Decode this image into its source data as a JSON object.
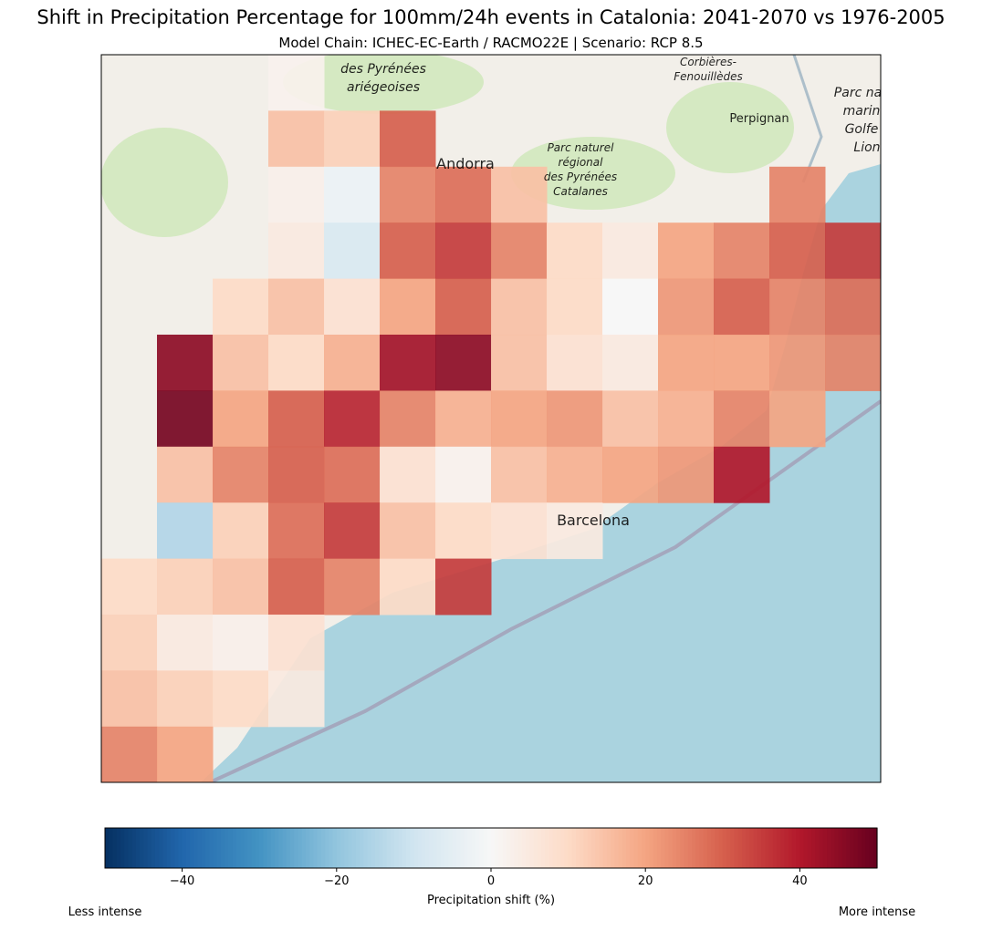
{
  "title": "Shift in Precipitation Percentage for 100mm/24h events in Catalonia: 2041-2070 vs 1976-2005",
  "subtitle": "Model Chain: ICHEC-EC-Earth / RACMO22E  | Scenario: RCP 8.5",
  "map": {
    "labels": [
      "des Pyrénées",
      "ariégeoises",
      "Corbières-",
      "Fenouillèdes",
      "Perpignan",
      "Andorra",
      "Parc naturel",
      "régional",
      "des Pyrénées",
      "Catalanes",
      "Parc na",
      "marin",
      "Golfe",
      "Lion",
      "Barcelona"
    ],
    "cells": [
      [
        null,
        null,
        null,
        2,
        null,
        null,
        null,
        null,
        null,
        null,
        null,
        null,
        null,
        null
      ],
      [
        null,
        null,
        null,
        15,
        12,
        30,
        null,
        null,
        null,
        null,
        null,
        null,
        null,
        null
      ],
      [
        null,
        null,
        null,
        3,
        -3,
        25,
        28,
        15,
        null,
        null,
        null,
        null,
        25,
        null
      ],
      [
        null,
        null,
        null,
        5,
        -8,
        30,
        35,
        25,
        10,
        5,
        20,
        25,
        30,
        35
      ],
      [
        null,
        null,
        10,
        15,
        8,
        20,
        30,
        15,
        10,
        0,
        22,
        30,
        25,
        28
      ],
      [
        null,
        45,
        15,
        10,
        18,
        42,
        45,
        15,
        8,
        5,
        20,
        20,
        22,
        25
      ],
      [
        null,
        48,
        20,
        30,
        38,
        25,
        18,
        20,
        22,
        15,
        18,
        25,
        20,
        null
      ],
      [
        null,
        15,
        25,
        30,
        28,
        8,
        2,
        15,
        18,
        20,
        22,
        40,
        null,
        null
      ],
      [
        null,
        -15,
        12,
        28,
        35,
        15,
        10,
        8,
        5,
        null,
        null,
        null,
        null,
        null
      ],
      [
        10,
        12,
        15,
        30,
        25,
        10,
        35,
        null,
        null,
        null,
        null,
        null,
        null,
        null
      ],
      [
        12,
        5,
        3,
        8,
        null,
        null,
        null,
        null,
        null,
        null,
        null,
        null,
        null,
        null
      ],
      [
        15,
        12,
        10,
        5,
        null,
        null,
        null,
        null,
        null,
        null,
        null,
        null,
        null,
        null
      ],
      [
        25,
        20,
        null,
        null,
        null,
        null,
        null,
        null,
        null,
        null,
        null,
        null,
        null,
        null
      ]
    ]
  },
  "colorbar": {
    "colormap": "RdBu_r",
    "lim": [
      -50,
      50
    ],
    "ticks": [
      {
        "value": -40,
        "label": "−40"
      },
      {
        "value": -20,
        "label": "−20"
      },
      0,
      20,
      40
    ],
    "label": "Precipitation shift (%)",
    "left_note": "Less intense",
    "right_note": "More intense"
  }
}
